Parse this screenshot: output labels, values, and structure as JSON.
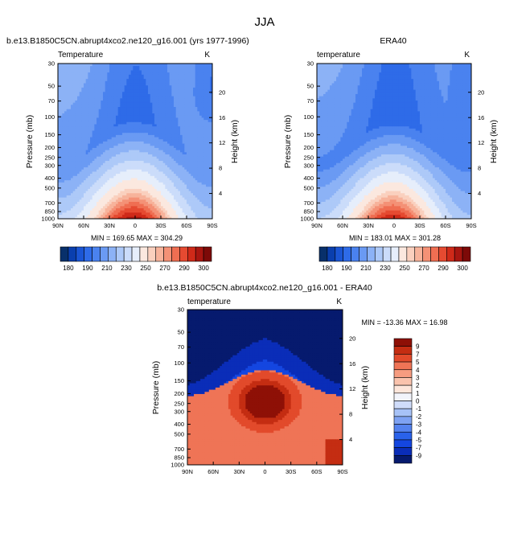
{
  "figure": {
    "title": "JJA"
  },
  "colors": {
    "temp_palette": [
      "#08306b",
      "#0a3fae",
      "#1a55d4",
      "#2e6be8",
      "#4a82ef",
      "#6a9af3",
      "#8cb2f6",
      "#adc9f8",
      "#cbdcfa",
      "#e6eefb",
      "#fbe8df",
      "#fad0be",
      "#f7b39b",
      "#f49176",
      "#ef6e52",
      "#e54a31",
      "#cf2a19",
      "#a81610",
      "#7d0a08"
    ],
    "diff_palette": [
      "#061a6e",
      "#0a2db8",
      "#1446e0",
      "#2a62ea",
      "#5482ef",
      "#7ea2f3",
      "#a7c2f7",
      "#cfdcfa",
      "#f2f4fb",
      "#fde6db",
      "#fac3ad",
      "#f69c80",
      "#ef7456",
      "#e24a2b",
      "#c42d12",
      "#8e1006"
    ]
  },
  "chart_data": [
    {
      "type": "heatmap",
      "panel_title": "b.e13.B1850C5CN.abrupt4xco2.ne120_g16.001 (yrs 1977-1996)",
      "left_label": "Temperature",
      "units": "K",
      "xlabel": "",
      "ylabel": "Pressure (mb)",
      "y2label": "Height (km)",
      "x_ticks": [
        "90N",
        "60N",
        "30N",
        "0",
        "30S",
        "60S",
        "90S"
      ],
      "x_range": [
        90,
        -90
      ],
      "y_ticks": [
        1000,
        850,
        700,
        500,
        400,
        300,
        250,
        200,
        150,
        100,
        70,
        50,
        30
      ],
      "y_range": [
        1000,
        30
      ],
      "y2_ticks": [
        4,
        8,
        12,
        16,
        20
      ],
      "stats": "MIN = 169.65  MAX = 304.29",
      "min": 169.65,
      "max": 304.29,
      "colorbar_labels": [
        "180",
        "190",
        "210",
        "230",
        "250",
        "270",
        "290",
        "300"
      ],
      "contour_levels": [
        180,
        185,
        190,
        200,
        210,
        220,
        230,
        240,
        250,
        260,
        270,
        275,
        280,
        285,
        290,
        295,
        300
      ],
      "tropopause_km": 15.5
    },
    {
      "type": "heatmap",
      "panel_title": "ERA40",
      "left_label": "temperature",
      "units": "K",
      "xlabel": "",
      "ylabel": "Pressure (mb)",
      "y2label": "Height (km)",
      "x_ticks": [
        "90N",
        "60N",
        "30N",
        "0",
        "30S",
        "60S",
        "90S"
      ],
      "x_range": [
        90,
        -90
      ],
      "y_ticks": [
        1000,
        850,
        700,
        500,
        400,
        300,
        250,
        200,
        150,
        100,
        70,
        50,
        30
      ],
      "y_range": [
        1000,
        30
      ],
      "y2_ticks": [
        4,
        8,
        12,
        16,
        20
      ],
      "stats": "MIN = 183.01  MAX = 301.28",
      "min": 183.01,
      "max": 301.28,
      "colorbar_labels": [
        "180",
        "190",
        "210",
        "230",
        "250",
        "270",
        "290",
        "300"
      ],
      "contour_levels": [
        180,
        185,
        190,
        200,
        210,
        220,
        230,
        240,
        250,
        260,
        270,
        275,
        280,
        285,
        290,
        295,
        300
      ],
      "tropopause_km": 15.5
    },
    {
      "type": "heatmap",
      "panel_title": "b.e13.B1850C5CN.abrupt4xco2.ne120_g16.001 - ERA40",
      "left_label": "temperature",
      "units": "K",
      "xlabel": "",
      "ylabel": "Pressure (mb)",
      "y2label": "Height (km)",
      "x_ticks": [
        "90N",
        "60N",
        "30N",
        "0",
        "30S",
        "60S",
        "90S"
      ],
      "x_range": [
        90,
        -90
      ],
      "y_ticks": [
        1000,
        850,
        700,
        500,
        400,
        300,
        250,
        200,
        150,
        100,
        70,
        50,
        30
      ],
      "y_range": [
        1000,
        30
      ],
      "y2_ticks": [
        4,
        8,
        12,
        16,
        20
      ],
      "stats": "MIN = -13.36  MAX =  16.98",
      "min": -13.36,
      "max": 16.98,
      "colorbar_labels": [
        "9",
        "7",
        "5",
        "4",
        "3",
        "2",
        "1",
        "0",
        "-1",
        "-2",
        "-3",
        "-4",
        "-5",
        "-7",
        "-9"
      ],
      "contour_levels": [
        -9,
        -7,
        -5,
        -4,
        -3,
        -2,
        -1,
        0,
        1,
        2,
        3,
        4,
        5,
        7,
        9
      ]
    }
  ]
}
